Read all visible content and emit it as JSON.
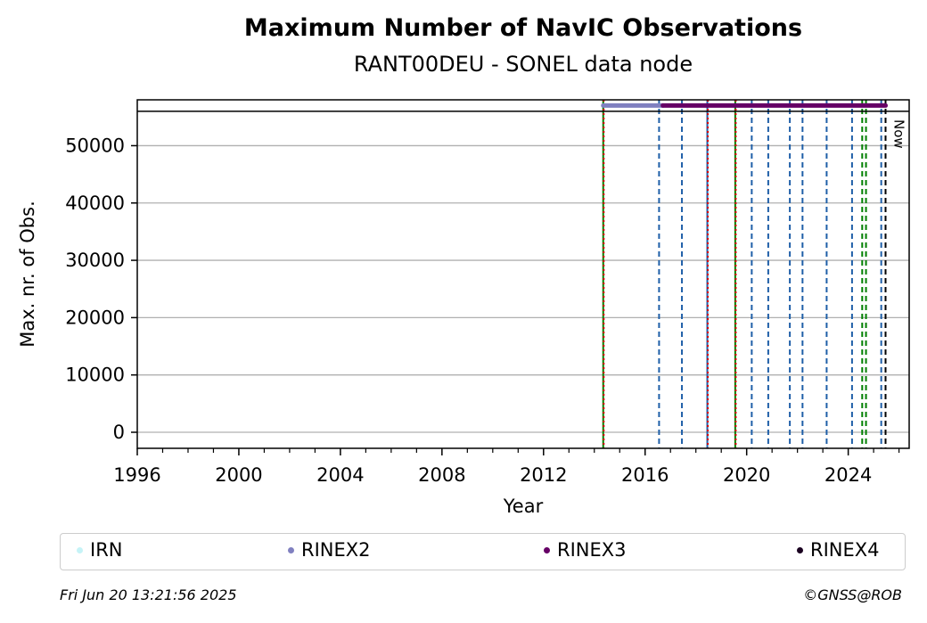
{
  "chart_data": {
    "type": "line",
    "title": "Maximum Number of NavIC Observations",
    "subtitle": "RANT00DEU - SONEL data node",
    "xlabel": "Year",
    "ylabel": "Max. nr. of Obs.",
    "xlim": [
      1996,
      2026.4
    ],
    "ylim": [
      -2800,
      58000
    ],
    "xticks": [
      1996,
      2000,
      2004,
      2008,
      2012,
      2016,
      2020,
      2024
    ],
    "yticks": [
      0,
      10000,
      20000,
      30000,
      40000,
      50000
    ],
    "y_grid": true,
    "reference_line": 56000,
    "now_label": "Now",
    "now_x": 2025.47,
    "series": [
      {
        "name": "IRN",
        "color": "#c6f3f7",
        "segments": []
      },
      {
        "name": "RINEX2",
        "color": "#8080c0",
        "segments": [
          [
            2014.35,
            2016.7
          ]
        ]
      },
      {
        "name": "RINEX3",
        "color": "#660066",
        "segments": [
          [
            2016.7,
            2025.47
          ]
        ]
      },
      {
        "name": "RINEX4",
        "color": "#1a0020",
        "segments": []
      }
    ],
    "track_y": 57000,
    "event_lines": [
      {
        "x": 2014.35,
        "color": "#008000",
        "style": "solid"
      },
      {
        "x": 2014.37,
        "color": "#e00000",
        "style": "dotted"
      },
      {
        "x": 2016.55,
        "color": "#1f5fa8",
        "style": "dashed"
      },
      {
        "x": 2017.45,
        "color": "#1f5fa8",
        "style": "dashed"
      },
      {
        "x": 2018.45,
        "color": "#1f5fa8",
        "style": "solid"
      },
      {
        "x": 2018.47,
        "color": "#e00000",
        "style": "dotted"
      },
      {
        "x": 2019.55,
        "color": "#008000",
        "style": "solid"
      },
      {
        "x": 2019.57,
        "color": "#e00000",
        "style": "dotted"
      },
      {
        "x": 2020.2,
        "color": "#1f5fa8",
        "style": "dashed"
      },
      {
        "x": 2020.85,
        "color": "#1f5fa8",
        "style": "dashed"
      },
      {
        "x": 2021.7,
        "color": "#1f5fa8",
        "style": "dashed"
      },
      {
        "x": 2022.2,
        "color": "#1f5fa8",
        "style": "dashed"
      },
      {
        "x": 2023.15,
        "color": "#1f5fa8",
        "style": "dashed"
      },
      {
        "x": 2024.15,
        "color": "#1f5fa8",
        "style": "dashed"
      },
      {
        "x": 2024.55,
        "color": "#008000",
        "style": "dashed"
      },
      {
        "x": 2024.7,
        "color": "#008000",
        "style": "dashed"
      },
      {
        "x": 2025.3,
        "color": "#1f5fa8",
        "style": "dashed"
      },
      {
        "x": 2025.47,
        "color": "#000000",
        "style": "dashed"
      }
    ],
    "legend": {
      "placement": "bottom",
      "entries": [
        "IRN",
        "RINEX2",
        "RINEX3",
        "RINEX4"
      ]
    }
  },
  "footer": {
    "timestamp": "Fri Jun 20 13:21:56 2025",
    "credit": "©GNSS@ROB"
  }
}
